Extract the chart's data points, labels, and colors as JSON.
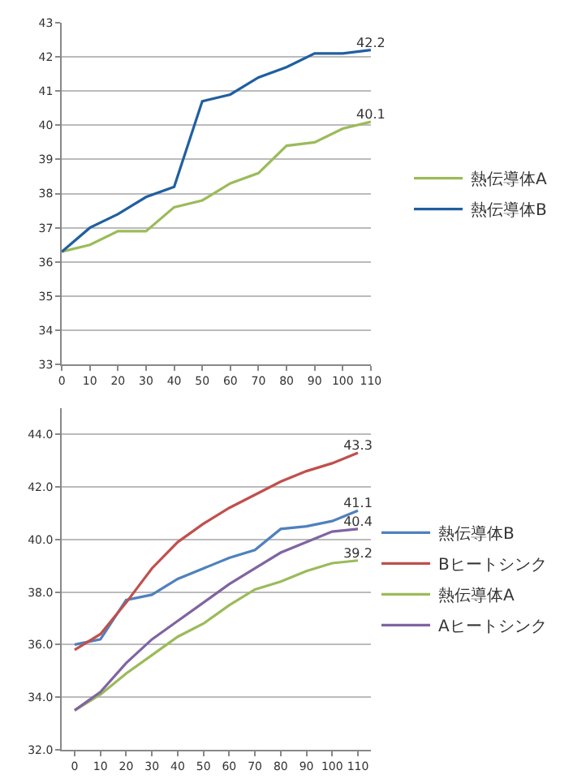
{
  "chart_data": [
    {
      "type": "line",
      "x": [
        0,
        10,
        20,
        30,
        40,
        50,
        60,
        70,
        80,
        90,
        100,
        110
      ],
      "xlim": [
        0,
        110
      ],
      "xticks": [
        0,
        10,
        20,
        30,
        40,
        50,
        60,
        70,
        80,
        90,
        100,
        110
      ],
      "ylim": [
        33,
        43
      ],
      "yticks": [
        33,
        34,
        35,
        36,
        37,
        38,
        39,
        40,
        41,
        42,
        43
      ],
      "grid": "y",
      "legend": "right",
      "marker": "none",
      "series": [
        {
          "name": "熱伝導体A",
          "color": "#9bbb59",
          "values": [
            36.3,
            36.5,
            36.9,
            36.9,
            37.6,
            37.8,
            38.3,
            38.6,
            39.4,
            39.5,
            39.9,
            40.1
          ],
          "value_labels": [
            null,
            null,
            null,
            null,
            null,
            null,
            null,
            null,
            null,
            null,
            null,
            "40.1"
          ]
        },
        {
          "name": "熱伝導体B",
          "color": "#1f5fa0",
          "values": [
            36.3,
            37.0,
            37.4,
            37.9,
            38.2,
            40.7,
            40.9,
            41.4,
            41.7,
            42.1,
            42.1,
            42.2
          ],
          "value_labels": [
            null,
            null,
            null,
            null,
            null,
            null,
            null,
            null,
            null,
            null,
            null,
            "42.2"
          ]
        }
      ]
    },
    {
      "type": "line",
      "categories": [
        "0",
        "10",
        "20",
        "30",
        "40",
        "50",
        "60",
        "70",
        "80",
        "90",
        "100",
        "110"
      ],
      "ylim": [
        32,
        45
      ],
      "yticks": [
        {
          "value": 32,
          "label": "32.0"
        },
        {
          "value": 34,
          "label": "34.0"
        },
        {
          "value": 36,
          "label": "36.0"
        },
        {
          "value": 38,
          "label": "38.0"
        },
        {
          "value": 40,
          "label": "40.0"
        },
        {
          "value": 42,
          "label": "42.0"
        },
        {
          "value": 44,
          "label": "44.0"
        }
      ],
      "grid": "y",
      "legend": "right",
      "marker": "none",
      "series": [
        {
          "name": "熱伝導体B",
          "color": "#4f81bd",
          "values": [
            36.0,
            36.2,
            37.7,
            37.9,
            38.5,
            38.9,
            39.3,
            39.6,
            40.4,
            40.5,
            40.7,
            41.1
          ],
          "value_labels": [
            null,
            null,
            null,
            null,
            null,
            null,
            null,
            null,
            null,
            null,
            null,
            "41.1"
          ]
        },
        {
          "name": "Bヒートシンク",
          "color": "#c0504d",
          "values": [
            35.8,
            36.4,
            37.6,
            38.9,
            39.9,
            40.6,
            41.2,
            41.7,
            42.2,
            42.6,
            42.9,
            43.3
          ],
          "value_labels": [
            null,
            null,
            null,
            null,
            null,
            null,
            null,
            null,
            null,
            null,
            null,
            "43.3"
          ]
        },
        {
          "name": "熱伝導体A",
          "color": "#9bbb59",
          "values": [
            33.5,
            34.1,
            34.9,
            35.6,
            36.3,
            36.8,
            37.5,
            38.1,
            38.4,
            38.8,
            39.1,
            39.2
          ],
          "value_labels": [
            null,
            null,
            null,
            null,
            null,
            null,
            null,
            null,
            null,
            null,
            null,
            "39.2"
          ]
        },
        {
          "name": "Aヒートシンク",
          "color": "#8064a2",
          "values": [
            33.5,
            34.2,
            35.3,
            36.2,
            36.9,
            37.6,
            38.3,
            38.9,
            39.5,
            39.9,
            40.3,
            40.4
          ],
          "value_labels": [
            null,
            null,
            null,
            null,
            null,
            null,
            null,
            null,
            null,
            null,
            null,
            "40.4"
          ]
        }
      ]
    }
  ]
}
